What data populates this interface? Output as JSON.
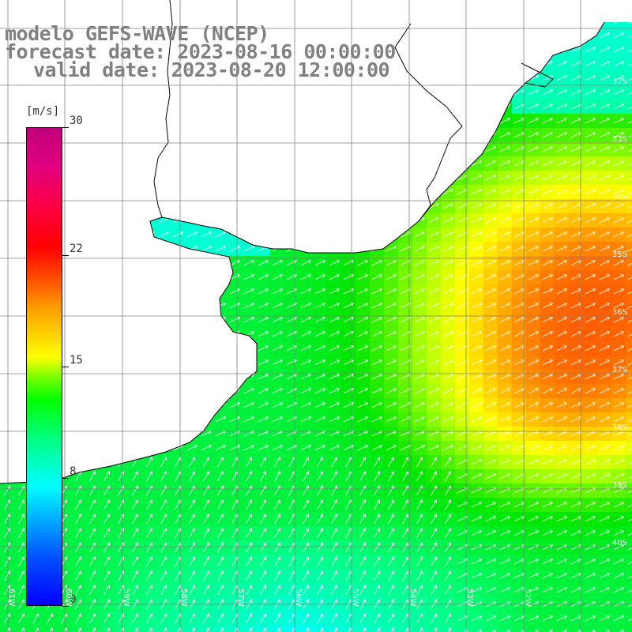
{
  "title": {
    "line1": "modelo GEFS-WAVE (NCEP)",
    "line2": "forecast date: 2023-08-16 00:00:00",
    "line3": "valid date: 2023-08-20 12:00:00"
  },
  "colorbar": {
    "unit": "[m/s]",
    "ticks": [
      {
        "label": "30",
        "value": 30
      },
      {
        "label": "22",
        "value": 22
      },
      {
        "label": "15",
        "value": 15
      },
      {
        "label": "8",
        "value": 8
      },
      {
        "label": "0",
        "value": 0
      }
    ],
    "range": [
      0,
      30
    ],
    "colors": [
      "#0000ff",
      "#00a0ff",
      "#00ffff",
      "#00ff00",
      "#ffff00",
      "#ffa000",
      "#ff0000",
      "#c0007a"
    ]
  },
  "map": {
    "variable": "wind speed (arrows = wind direction)",
    "lat_labels": [
      "32S",
      "33S",
      "34S",
      "35S",
      "36S",
      "37S",
      "38S",
      "39S",
      "40S"
    ],
    "lon_labels": [
      "61W",
      "60W",
      "59W",
      "58W",
      "57W",
      "56W",
      "55W",
      "54W",
      "53W",
      "52W"
    ],
    "land_color": "#ffffff",
    "coast_color": "#000000",
    "grid_color": "#808080"
  }
}
